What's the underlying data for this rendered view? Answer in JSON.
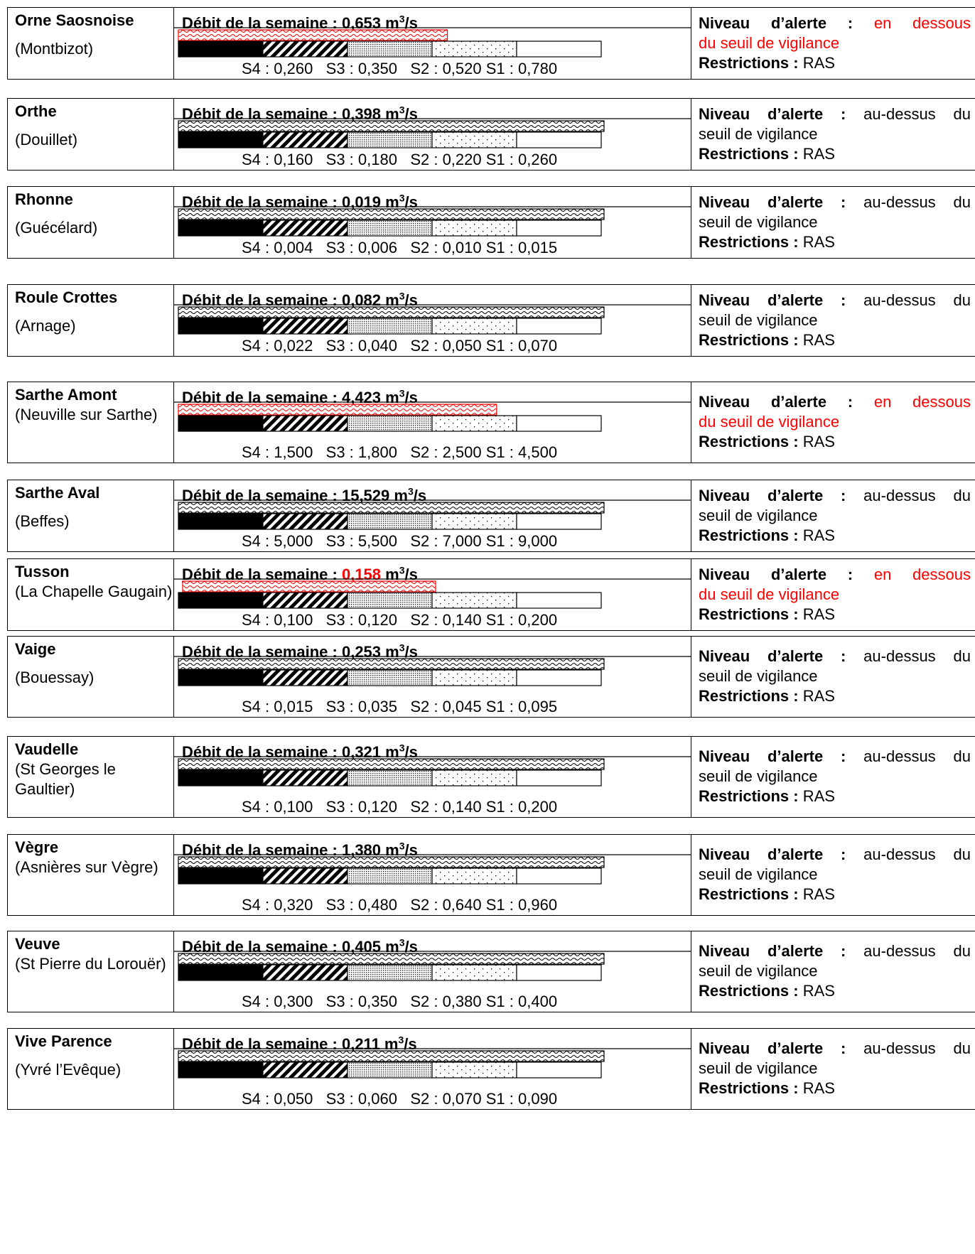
{
  "labels": {
    "debit_prefix": "Débit de la semaine : ",
    "unit_m": " m",
    "unit_sup": "3",
    "unit_s": "/s",
    "niveau_label": "Niveau d’alerte :",
    "restrictions_label": "Restrictions :",
    "colors": {
      "below": "#ff0000",
      "normal": "#000000"
    }
  },
  "stations": [
    {
      "river": "Orne Saosnoise",
      "location": "(Montbizot)",
      "debit": "0,653",
      "debit_value": 0.653,
      "debit_red": false,
      "thresholds": {
        "S4": "0,260",
        "S3": "0,350",
        "S2": "0,520",
        "S1": "0,780"
      },
      "threshold_values": [
        0.26,
        0.35,
        0.52,
        0.78
      ],
      "alert_line1_word": "en",
      "alert_line1_word2": "dessous",
      "alert_line2": "du seuil de vigilance",
      "below": true,
      "restrictions": "RAS"
    },
    {
      "river": "Orthe",
      "location": "(Douillet)",
      "debit": "0,398",
      "debit_value": 0.398,
      "debit_red": false,
      "thresholds": {
        "S4": "0,160",
        "S3": "0,180",
        "S2": "0,220",
        "S1": "0,260"
      },
      "threshold_values": [
        0.16,
        0.18,
        0.22,
        0.26
      ],
      "alert_line1_word": "au-dessus",
      "alert_line1_word2": "du",
      "alert_line2": "seuil de vigilance",
      "below": false,
      "restrictions": "RAS"
    },
    {
      "river": "Rhonne",
      "location": "(Guécélard)",
      "debit": "0,019",
      "debit_value": 0.019,
      "debit_red": false,
      "thresholds": {
        "S4": "0,004",
        "S3": "0,006",
        "S2": "0,010",
        "S1": "0,015"
      },
      "threshold_values": [
        0.004,
        0.006,
        0.01,
        0.015
      ],
      "alert_line1_word": "au-dessus",
      "alert_line1_word2": "du",
      "alert_line2": "seuil de vigilance",
      "below": false,
      "restrictions": "RAS"
    },
    {
      "river": "Roule Crottes",
      "location": "(Arnage)",
      "debit": "0,082",
      "debit_value": 0.082,
      "debit_red": false,
      "thresholds": {
        "S4": "0,022",
        "S3": "0,040",
        "S2": "0,050",
        "S1": "0,070"
      },
      "threshold_values": [
        0.022,
        0.04,
        0.05,
        0.07
      ],
      "alert_line1_word": "au-dessus",
      "alert_line1_word2": "du",
      "alert_line2": "seuil de vigilance",
      "below": false,
      "restrictions": "RAS"
    },
    {
      "river": "Sarthe Amont",
      "location": "(Neuville sur Sarthe)",
      "debit": "4,423",
      "debit_value": 4.423,
      "debit_red": false,
      "thresholds": {
        "S4": "1,500",
        "S3": "1,800",
        "S2": "2,500",
        "S1": "4,500"
      },
      "threshold_values": [
        1.5,
        1.8,
        2.5,
        4.5
      ],
      "alert_line1_word": "en",
      "alert_line1_word2": "dessous",
      "alert_line2": "du seuil de vigilance",
      "below": true,
      "restrictions": "RAS"
    },
    {
      "river": "Sarthe Aval",
      "location": "(Beffes)",
      "debit": "15,529",
      "debit_value": 15.529,
      "debit_red": false,
      "thresholds": {
        "S4": "5,000",
        "S3": "5,500",
        "S2": "7,000",
        "S1": "9,000"
      },
      "threshold_values": [
        5.0,
        5.5,
        7.0,
        9.0
      ],
      "alert_line1_word": "au-dessus",
      "alert_line1_word2": "du",
      "alert_line2": "seuil de vigilance",
      "below": false,
      "restrictions": "RAS"
    },
    {
      "river": "Tusson",
      "location": "(La Chapelle Gaugain)",
      "debit": "0,158",
      "debit_value": 0.158,
      "debit_red": true,
      "thresholds": {
        "S4": "0,100",
        "S3": "0,120",
        "S2": "0,140",
        "S1": "0,200"
      },
      "threshold_values": [
        0.1,
        0.12,
        0.14,
        0.2
      ],
      "alert_line1_word": "en",
      "alert_line1_word2": "dessous",
      "alert_line2": "du seuil de vigilance",
      "below": true,
      "restrictions": "RAS"
    },
    {
      "river": "Vaige",
      "location": "(Bouessay)",
      "debit": "0,253",
      "debit_value": 0.253,
      "debit_red": false,
      "thresholds": {
        "S4": "0,015",
        "S3": "0,035",
        "S2": "0,045",
        "S1": "0,095"
      },
      "threshold_values": [
        0.015,
        0.035,
        0.045,
        0.095
      ],
      "alert_line1_word": "au-dessus",
      "alert_line1_word2": "du",
      "alert_line2": "seuil de vigilance",
      "below": false,
      "restrictions": "RAS"
    },
    {
      "river": "Vaudelle",
      "location": "(St Georges le Gaultier)",
      "debit": "0,321",
      "debit_value": 0.321,
      "debit_red": false,
      "thresholds": {
        "S4": "0,100",
        "S3": "0,120",
        "S2": "0,140",
        "S1": "0,200"
      },
      "threshold_values": [
        0.1,
        0.12,
        0.14,
        0.2
      ],
      "alert_line1_word": "au-dessus",
      "alert_line1_word2": "du",
      "alert_line2": "seuil de vigilance",
      "below": false,
      "restrictions": "RAS"
    },
    {
      "river": "Vègre",
      "location": "(Asnières sur Vègre)",
      "debit": "1,380",
      "debit_value": 1.38,
      "debit_red": false,
      "thresholds": {
        "S4": "0,320",
        "S3": "0,480",
        "S2": "0,640",
        "S1": "0,960"
      },
      "threshold_values": [
        0.32,
        0.48,
        0.64,
        0.96
      ],
      "alert_line1_word": "au-dessus",
      "alert_line1_word2": "du",
      "alert_line2": "seuil de vigilance",
      "below": false,
      "restrictions": "RAS"
    },
    {
      "river": "Veuve",
      "location": "(St Pierre du Lorouër)",
      "debit": "0,405",
      "debit_value": 0.405,
      "debit_red": false,
      "thresholds": {
        "S4": "0,300",
        "S3": "0,350",
        "S2": "0,380",
        "S1": "0,400"
      },
      "threshold_values": [
        0.3,
        0.35,
        0.38,
        0.4
      ],
      "alert_line1_word": "au-dessus",
      "alert_line1_word2": "du",
      "alert_line2": "seuil de vigilance",
      "below": false,
      "restrictions": "RAS"
    },
    {
      "river": "Vive Parence",
      "location": "(Yvré l’Evêque)",
      "debit": "0,211",
      "debit_value": 0.211,
      "debit_red": false,
      "thresholds": {
        "S4": "0,050",
        "S3": "0,060",
        "S2": "0,070",
        "S1": "0,090"
      },
      "threshold_values": [
        0.05,
        0.06,
        0.07,
        0.09
      ],
      "alert_line1_word": "au-dessus",
      "alert_line1_word2": "du",
      "alert_line2": "seuil de vigilance",
      "below": false,
      "restrictions": "RAS"
    }
  ]
}
